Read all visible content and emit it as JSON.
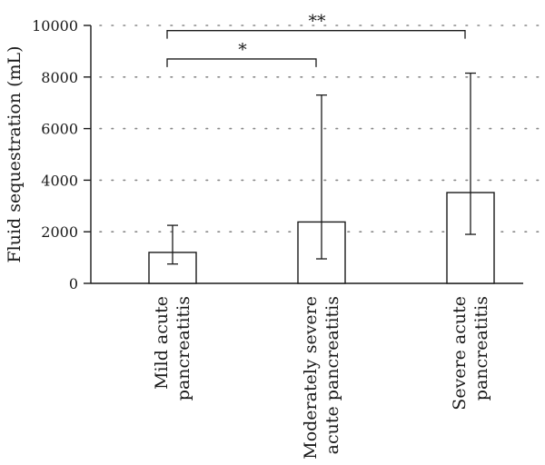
{
  "chart_data": {
    "type": "bar",
    "title": "",
    "xlabel": "",
    "ylabel": "Fluid sequestration (mL)",
    "ylim": [
      0,
      10000
    ],
    "yticks": [
      0,
      2000,
      4000,
      6000,
      8000,
      10000
    ],
    "grid": "dotted horizontal",
    "categories": [
      [
        "Mild acute",
        "pancreatitis"
      ],
      [
        "Moderately severe",
        "acute pancreatitis"
      ],
      [
        "Severe acute",
        "pancreatitis"
      ]
    ],
    "values": [
      1200,
      2380,
      3520
    ],
    "error_low": [
      750,
      950,
      1900
    ],
    "error_high": [
      2250,
      7300,
      8150
    ],
    "significance": [
      {
        "from": 0,
        "to": 1,
        "label": "*",
        "level": 8700
      },
      {
        "from": 0,
        "to": 2,
        "label": "**",
        "level": 9800
      }
    ],
    "colors": {
      "bar_fill": "#ffffff",
      "stroke": "#1a1a1a",
      "grid": "#888888"
    }
  }
}
